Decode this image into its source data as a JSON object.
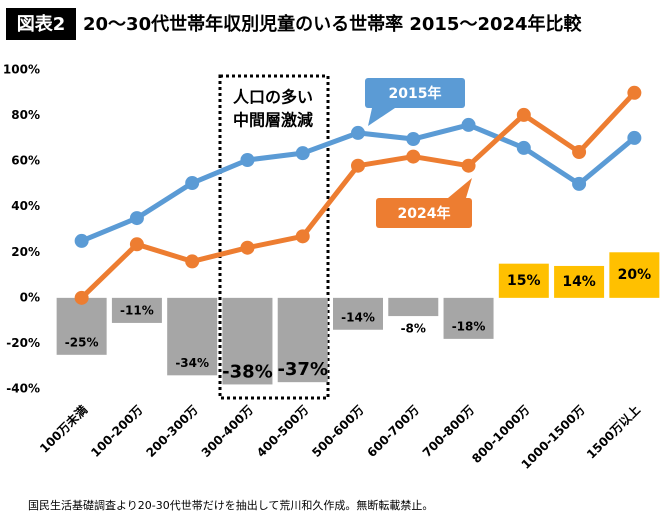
{
  "chart_data": {
    "type": "line",
    "title_tag": "図表2",
    "title": "20～30代世帯年収別児童のいる世帯率 2015～2024年比較",
    "categories": [
      "100万未満",
      "100-200万",
      "200-300万",
      "300-400万",
      "400-500万",
      "500-600万",
      "600-700万",
      "700-800万",
      "800-1000万",
      "1000-1500万",
      "1500万以上"
    ],
    "series": [
      {
        "name": "2015年",
        "color": "#5b9bd5",
        "values": [
          25,
          35,
          50.4,
          60.5,
          63.5,
          72.4,
          69.7,
          75.9,
          65.8,
          50,
          70.2
        ]
      },
      {
        "name": "2024年",
        "color": "#ed7d31",
        "values": [
          0,
          23.5,
          16,
          22,
          27,
          58,
          62,
          58,
          80.3,
          64,
          90
        ]
      }
    ],
    "bars": {
      "values": [
        -25,
        -11,
        -34,
        -38,
        -37,
        -14,
        -8,
        -18,
        15,
        14,
        20
      ],
      "value_labels": [
        "-25%",
        "-11%",
        "-34%",
        "-38%",
        "-37%",
        "-14%",
        "-8%",
        "-18%",
        "15%",
        "14%",
        "20%"
      ],
      "negative_color": "#a6a6a6",
      "positive_color": "#ffc000"
    },
    "annotations": [
      "人口の多い",
      "中間層激減"
    ],
    "ylim": [
      -40,
      100
    ],
    "yticks": [
      {
        "value": -40,
        "label": "-40%"
      },
      {
        "value": -20,
        "label": "-20%"
      },
      {
        "value": 0,
        "label": "0%"
      },
      {
        "value": 20,
        "label": "20%"
      },
      {
        "value": 40,
        "label": "40%"
      },
      {
        "value": 60,
        "label": "60%"
      },
      {
        "value": 80,
        "label": "80%"
      },
      {
        "value": 100,
        "label": "100%"
      }
    ],
    "grid": false,
    "note": "国民生活基礎調査より20-30代世帯だけを抽出して荒川和久作成。無断転載禁止。"
  }
}
